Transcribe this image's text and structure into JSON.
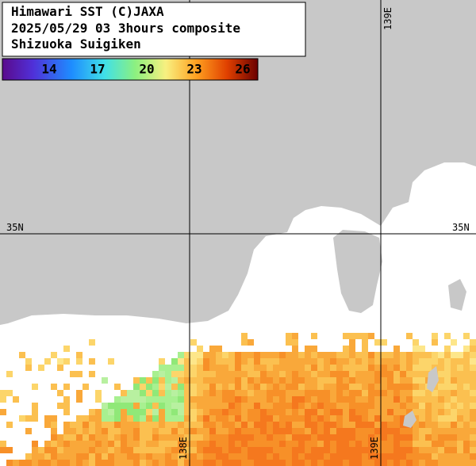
{
  "header": {
    "lines": [
      "Himawari SST (C)JAXA",
      "2025/05/29 03 3hours composite",
      "Shizuoka Suigiken"
    ]
  },
  "colorbar": {
    "labels": [
      "14",
      "17",
      "20",
      "23",
      "26"
    ]
  },
  "grid": {
    "lat_label": "35N",
    "lon_labels": [
      "138E",
      "139E"
    ]
  }
}
